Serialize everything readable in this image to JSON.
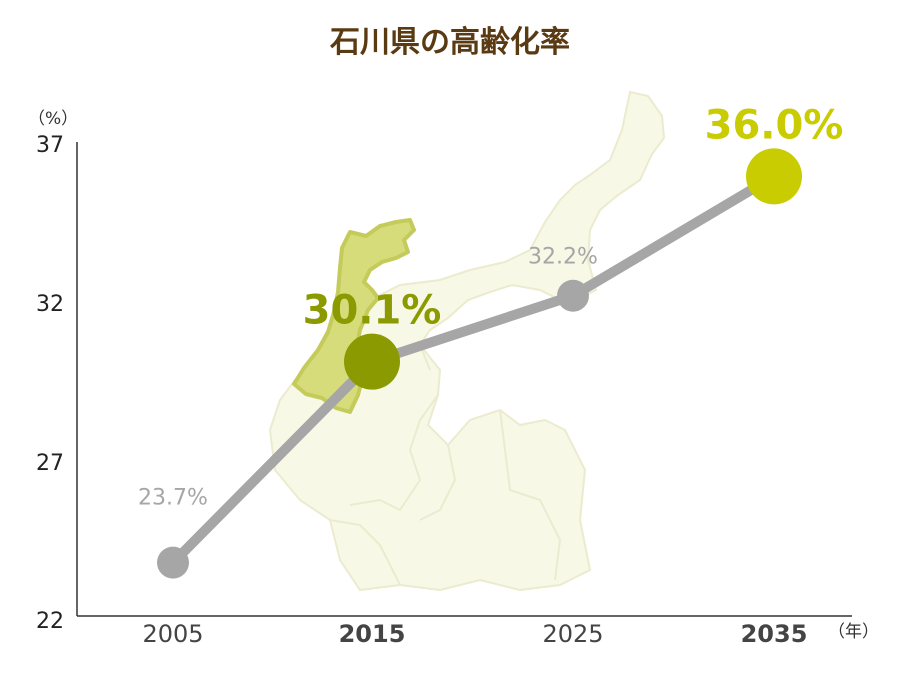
{
  "chart_data": {
    "type": "line",
    "title": "石川県の高齢化率",
    "y_unit": "（%）",
    "x_unit": "（年）",
    "ylim": [
      22,
      37
    ],
    "y_ticks": [
      "37",
      "32",
      "27",
      "22"
    ],
    "x": [
      "2005",
      "2015",
      "2025",
      "2035"
    ],
    "series": [
      {
        "values": [
          23.7,
          30.1,
          32.2,
          36.0
        ]
      }
    ],
    "data_labels": [
      "23.7%",
      "30.1%",
      "32.2%",
      "36.0%"
    ],
    "grid": false
  },
  "colors": {
    "line": "#a6a6a6",
    "point_default": "#a6a6a6",
    "highlight_2015": "#8a9a00",
    "highlight_2035": "#c8cc00",
    "map_fill": "#f8f8e6",
    "map_stroke": "#ecebcf",
    "ishikawa_fill": "#d6dc7a",
    "ishikawa_stroke": "#c4cb5a"
  }
}
